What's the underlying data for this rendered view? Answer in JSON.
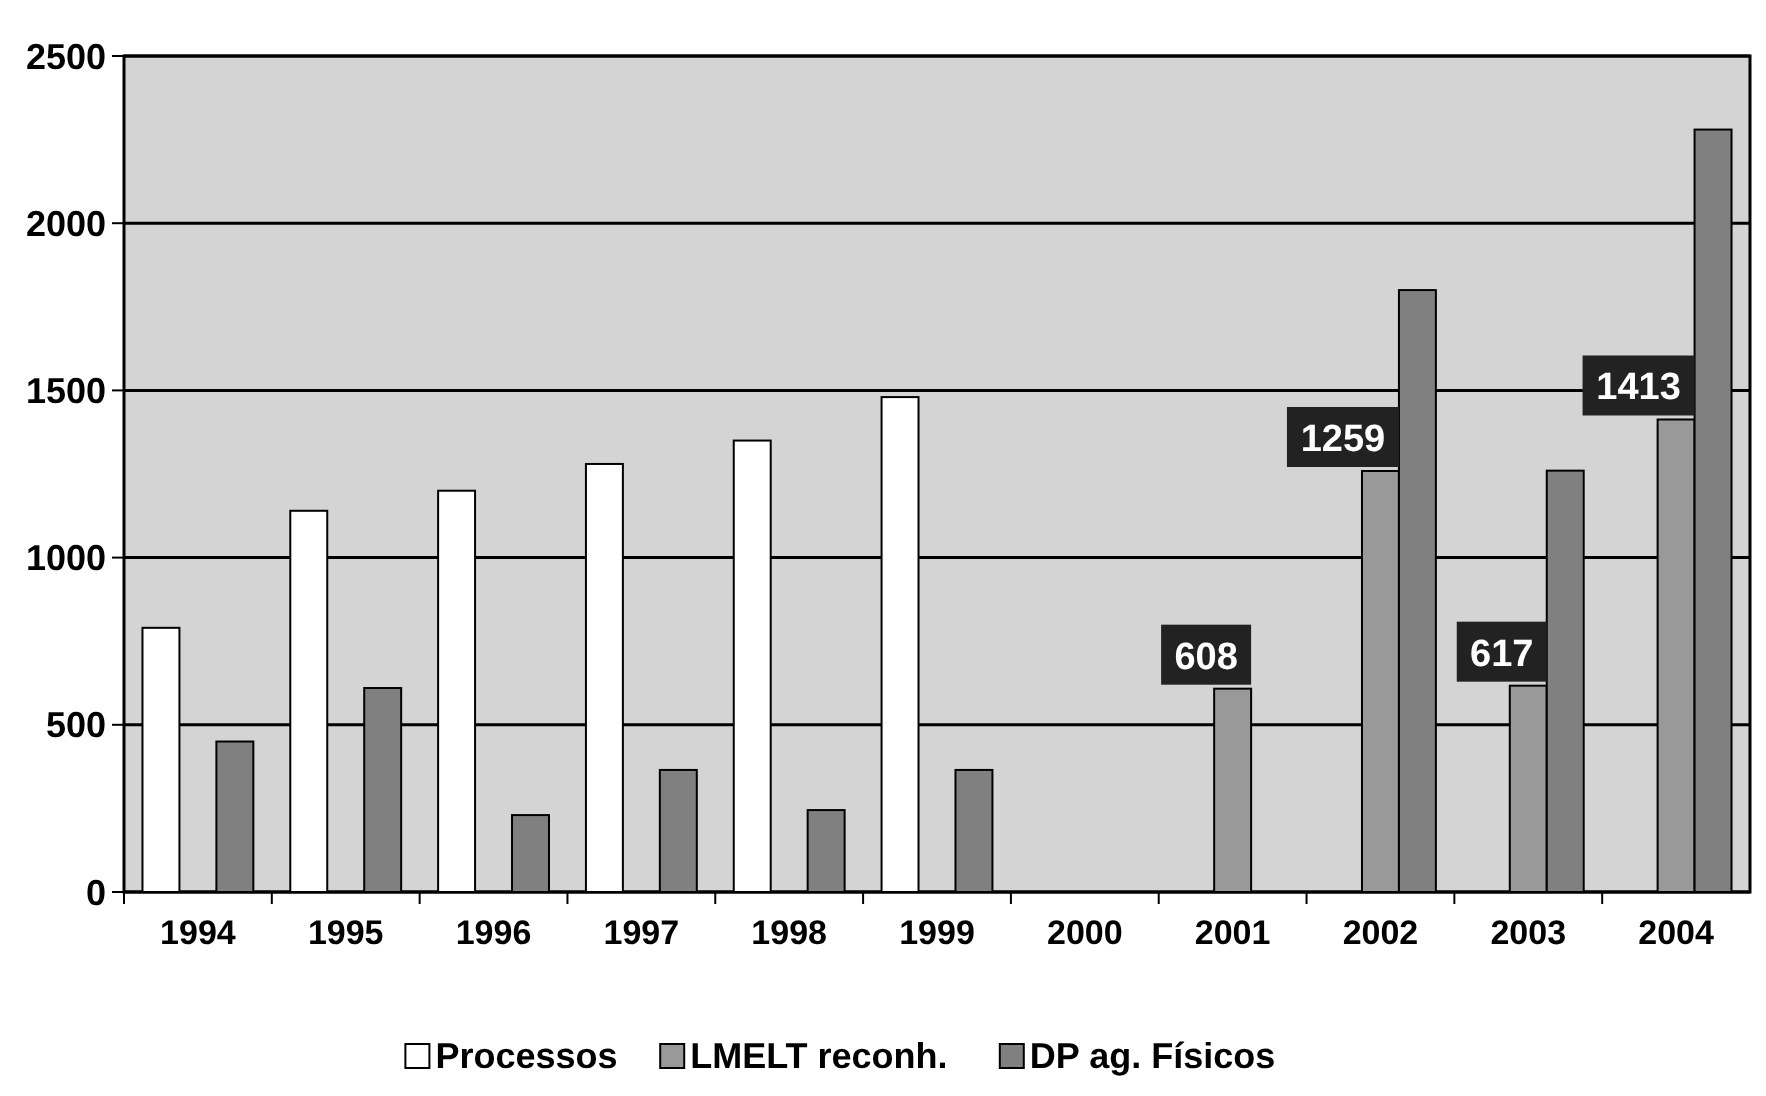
{
  "chart_data": {
    "type": "bar",
    "categories": [
      "1994",
      "1995",
      "1996",
      "1997",
      "1998",
      "1999",
      "2000",
      "2001",
      "2002",
      "2003",
      "2004"
    ],
    "series": [
      {
        "name": "Processos",
        "color": "#ffffff",
        "values": [
          790,
          1140,
          1200,
          1280,
          1350,
          1480,
          null,
          null,
          null,
          null,
          null
        ]
      },
      {
        "name": "LMELT reconh.",
        "color": "#999999",
        "values": [
          null,
          null,
          null,
          null,
          null,
          null,
          null,
          608,
          1259,
          617,
          1413
        ],
        "value_labels": [
          null,
          null,
          null,
          null,
          null,
          null,
          null,
          "608",
          "1259",
          "617",
          "1413"
        ]
      },
      {
        "name": "DP ag. Físicos",
        "color": "#808080",
        "values": [
          450,
          610,
          230,
          365,
          245,
          365,
          null,
          null,
          1800,
          1260,
          2280
        ]
      }
    ],
    "ylim": [
      0,
      2500
    ],
    "yticks": [
      0,
      500,
      1000,
      1500,
      2000,
      2500
    ],
    "grid": "y",
    "legend": "bottom"
  }
}
